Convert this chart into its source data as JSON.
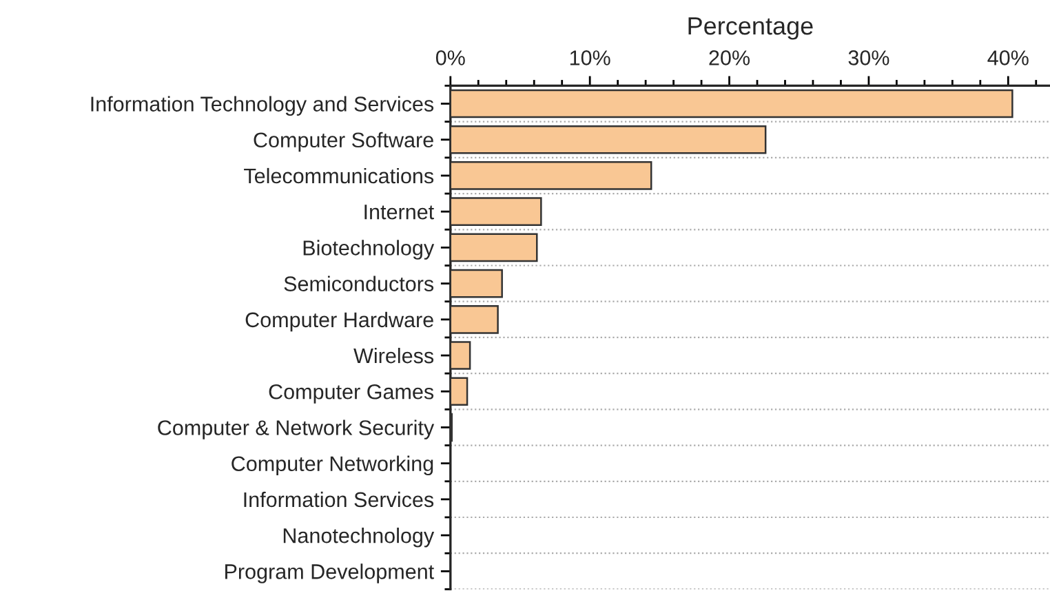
{
  "chart_data": {
    "type": "bar",
    "orientation": "horizontal",
    "xlabel": "Percentage",
    "categories": [
      "Information Technology and Services",
      "Computer Software",
      "Telecommunications",
      "Internet",
      "Biotechnology",
      "Semiconductors",
      "Computer Hardware",
      "Wireless",
      "Computer Games",
      "Computer & Network Security",
      "Computer Networking",
      "Information Services",
      "Nanotechnology",
      "Program Development"
    ],
    "values": [
      40.3,
      22.6,
      14.4,
      6.5,
      6.2,
      3.7,
      3.4,
      1.4,
      1.2,
      0.1,
      0,
      0,
      0,
      0
    ],
    "color": "#f9c794",
    "xlim": [
      0,
      43
    ],
    "xticks": [
      {
        "value": 0,
        "label": "0%"
      },
      {
        "value": 10,
        "label": "10%"
      },
      {
        "value": 20,
        "label": "20%"
      },
      {
        "value": 30,
        "label": "30%"
      },
      {
        "value": 40,
        "label": "40%"
      }
    ],
    "grid": "y",
    "legend": false
  }
}
